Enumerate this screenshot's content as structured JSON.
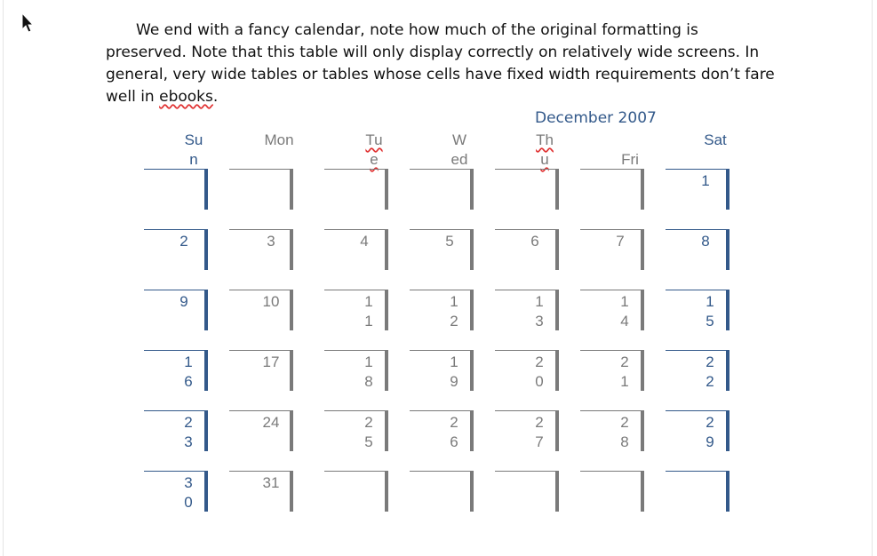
{
  "document": {
    "paragraph": [
      {
        "text": "We end with a fancy calendar, note how much of the original formatting is preserved. Note that this table will only display correctly on relatively wide screens. In general, very wide tables or tables whose cells have fixed width requirements don’t fare well in ",
        "spell": false
      },
      {
        "text": "ebooks",
        "spell": true
      },
      {
        "text": ".",
        "spell": false
      }
    ],
    "calendar_caption": "December 2007",
    "weekday_headers": [
      "Sun",
      "Mon",
      "Tue",
      "Wed",
      "Thu",
      "Fri",
      "Sat"
    ],
    "weeks": [
      [
        "",
        "",
        "",
        "",
        "",
        "",
        "1"
      ],
      [
        "2",
        "3",
        "4",
        "5",
        "6",
        "7",
        "8"
      ],
      [
        "9",
        "10",
        "11",
        "12",
        "13",
        "14",
        "15"
      ],
      [
        "16",
        "17",
        "18",
        "19",
        "20",
        "21",
        "22"
      ],
      [
        "23",
        "24",
        "25",
        "26",
        "27",
        "28",
        "29"
      ],
      [
        "30",
        "31",
        "",
        "",
        "",
        "",
        ""
      ]
    ],
    "colors": {
      "weekend": "#33598a",
      "weekday": "#7a7a7a",
      "spellcheck": "#e03030"
    }
  }
}
